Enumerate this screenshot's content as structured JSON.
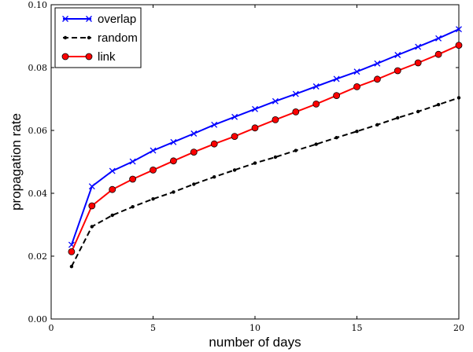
{
  "chart_data": {
    "type": "line",
    "xlabel": "number of days",
    "ylabel": "propagation rate",
    "xlim": [
      0,
      20
    ],
    "ylim": [
      0.0,
      0.1
    ],
    "x_ticks": [
      0,
      5,
      10,
      15,
      20
    ],
    "x_tick_labels": [
      "0",
      "5",
      "10",
      "15",
      "20"
    ],
    "y_ticks": [
      0.0,
      0.02,
      0.04,
      0.06,
      0.08,
      0.1
    ],
    "y_tick_labels": [
      "0.00",
      "0.02",
      "0.04",
      "0.06",
      "0.08",
      "0.10"
    ],
    "grid": false,
    "legend_position": "top-left",
    "x": [
      1,
      2,
      3,
      4,
      5,
      6,
      7,
      8,
      9,
      10,
      11,
      12,
      13,
      14,
      15,
      16,
      17,
      18,
      19,
      20
    ],
    "series": [
      {
        "name": "overlap",
        "color": "#0000ff",
        "marker": "x",
        "line": "solid",
        "values": [
          0.0236,
          0.0422,
          0.0471,
          0.0501,
          0.0536,
          0.0563,
          0.059,
          0.0618,
          0.0643,
          0.0668,
          0.0693,
          0.0716,
          0.074,
          0.0764,
          0.0787,
          0.0813,
          0.084,
          0.0866,
          0.0893,
          0.0922
        ]
      },
      {
        "name": "random",
        "color": "#000000",
        "marker": "dot",
        "line": "dashed",
        "values": [
          0.0167,
          0.0294,
          0.033,
          0.0357,
          0.0382,
          0.0404,
          0.0429,
          0.0452,
          0.0474,
          0.0496,
          0.0515,
          0.0536,
          0.0556,
          0.0577,
          0.0597,
          0.0618,
          0.064,
          0.066,
          0.0682,
          0.0704
        ]
      },
      {
        "name": "link",
        "color": "#ff0000",
        "marker": "circle",
        "line": "solid",
        "values": [
          0.0214,
          0.036,
          0.0412,
          0.0445,
          0.0474,
          0.0503,
          0.0531,
          0.0557,
          0.0581,
          0.0608,
          0.0634,
          0.0659,
          0.0684,
          0.0711,
          0.0739,
          0.0763,
          0.079,
          0.0815,
          0.0842,
          0.0871
        ]
      }
    ]
  }
}
